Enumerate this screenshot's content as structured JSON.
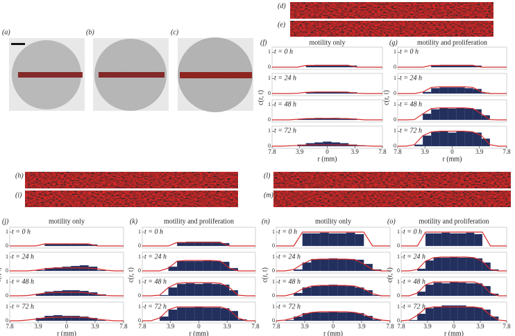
{
  "figure": {
    "image_labels": [
      "(a)",
      "(b)",
      "(c)",
      "(d)",
      "(e)",
      "(h)",
      "(i)",
      "(l)",
      "(m)"
    ]
  },
  "panels": [
    {
      "label": "(f)",
      "title": "motility only",
      "ylabel": "c(r, t)",
      "xlabel": "r (mm)",
      "xlim": [
        -7.8,
        7.8
      ],
      "ylim": [
        0,
        1.2
      ],
      "yticks": [
        0,
        1
      ],
      "xticks": [
        {
          "value": -7.8,
          "label": "7.8"
        },
        {
          "value": -3.9,
          "label": "3.9"
        },
        0,
        3.9,
        7.8
      ],
      "bins": [
        -7.8,
        -6.6,
        -5.4,
        -4.2,
        -3.0,
        -1.8,
        -0.6,
        0.6,
        1.8,
        3.0,
        4.2,
        5.4,
        6.6,
        7.8
      ],
      "rows": [
        {
          "time": "t = 0 h",
          "counts": [
            0,
            0,
            0,
            0,
            0.1,
            0.15,
            0.15,
            0.15,
            0.15,
            0.1,
            0,
            0,
            0
          ],
          "model": [
            0,
            0,
            0,
            0,
            0.12,
            0.12,
            0.12,
            0.12,
            0.12,
            0.12,
            0,
            0,
            0,
            0
          ]
        },
        {
          "time": "t = 24 h",
          "counts": [
            0,
            0,
            0,
            0,
            0.08,
            0.12,
            0.12,
            0.12,
            0.12,
            0.08,
            0,
            0,
            0
          ],
          "model": [
            0,
            0,
            0,
            0.02,
            0.08,
            0.1,
            0.1,
            0.1,
            0.1,
            0.08,
            0.02,
            0,
            0,
            0
          ]
        },
        {
          "time": "t = 48 h",
          "counts": [
            0,
            0,
            0,
            0.05,
            0.1,
            0.12,
            0.1,
            0.12,
            0.1,
            0.08,
            0,
            0,
            0
          ],
          "model": [
            0,
            0,
            0,
            0.04,
            0.08,
            0.09,
            0.1,
            0.1,
            0.09,
            0.08,
            0.04,
            0,
            0,
            0
          ]
        },
        {
          "time": "t = 72 h",
          "counts": [
            0,
            0,
            0,
            0.1,
            0.2,
            0.25,
            0.3,
            0.25,
            0.2,
            0.1,
            0.05,
            0,
            0
          ],
          "model": [
            0,
            0,
            0.02,
            0.05,
            0.08,
            0.09,
            0.09,
            0.09,
            0.09,
            0.08,
            0.05,
            0.02,
            0,
            0
          ]
        }
      ]
    },
    {
      "label": "(g)",
      "title": "motility and proliferation",
      "ylabel": "c(r, t)",
      "xlabel": "r (mm)",
      "xlim": [
        -7.8,
        7.8
      ],
      "ylim": [
        0,
        1.2
      ],
      "yticks": [
        0,
        1
      ],
      "xticks": [
        {
          "value": -7.8,
          "label": "7.8"
        },
        {
          "value": -3.9,
          "label": "3.9"
        },
        0,
        3.9,
        7.8
      ],
      "bins": [
        -7.8,
        -6.6,
        -5.4,
        -4.2,
        -3.0,
        -1.8,
        -0.6,
        0.6,
        1.8,
        3.0,
        4.2,
        5.4,
        6.6,
        7.8
      ],
      "rows": [
        {
          "time": "t = 0 h",
          "counts": [
            0,
            0,
            0,
            0,
            0.1,
            0.15,
            0.15,
            0.15,
            0.15,
            0.1,
            0,
            0,
            0
          ],
          "model": [
            0,
            0,
            0,
            0,
            0.12,
            0.12,
            0.12,
            0.12,
            0.12,
            0.12,
            0,
            0,
            0,
            0
          ]
        },
        {
          "time": "t = 24 h",
          "counts": [
            0,
            0,
            0,
            0.1,
            0.35,
            0.4,
            0.4,
            0.4,
            0.35,
            0.3,
            0.05,
            0,
            0
          ],
          "model": [
            0,
            0,
            0,
            0.1,
            0.4,
            0.45,
            0.45,
            0.45,
            0.45,
            0.4,
            0.1,
            0,
            0,
            0
          ]
        },
        {
          "time": "t = 48 h",
          "counts": [
            0,
            0,
            0,
            0.4,
            0.7,
            0.8,
            0.75,
            0.8,
            0.75,
            0.7,
            0.3,
            0,
            0
          ],
          "model": [
            0,
            0,
            0.02,
            0.4,
            0.75,
            0.8,
            0.8,
            0.8,
            0.8,
            0.75,
            0.4,
            0.02,
            0,
            0
          ]
        },
        {
          "time": "t = 72 h",
          "counts": [
            0,
            0,
            0.1,
            0.7,
            0.95,
            1,
            0.9,
            1,
            0.95,
            0.9,
            0.5,
            0,
            0
          ],
          "model": [
            0,
            0,
            0.1,
            0.7,
            0.95,
            1,
            1,
            1,
            1,
            0.95,
            0.7,
            0.1,
            0,
            0
          ]
        }
      ]
    },
    {
      "label": "(j)",
      "title": "motility only",
      "ylabel": "c(r, t)",
      "xlabel": "r (mm)",
      "xlim": [
        -7.8,
        7.8
      ],
      "ylim": [
        0,
        1.2
      ],
      "yticks": [
        0,
        1
      ],
      "xticks": [
        {
          "value": -7.8,
          "label": "7.8"
        },
        {
          "value": -3.9,
          "label": "3.9"
        },
        0,
        3.9,
        7.8
      ],
      "bins": [
        -7.8,
        -6.6,
        -5.4,
        -4.2,
        -3.0,
        -1.8,
        -0.6,
        0.6,
        1.8,
        3.0,
        4.2,
        5.4,
        6.6,
        7.8
      ],
      "rows": [
        {
          "time": "t = 0 h",
          "counts": [
            0,
            0,
            0,
            0,
            0.15,
            0.15,
            0.15,
            0.15,
            0.15,
            0.1,
            0,
            0,
            0
          ],
          "model": [
            0,
            0,
            0,
            0,
            0.15,
            0.15,
            0.15,
            0.15,
            0.15,
            0.15,
            0,
            0,
            0,
            0
          ]
        },
        {
          "time": "t = 24 h",
          "counts": [
            0,
            0,
            0,
            0.05,
            0.2,
            0.25,
            0.3,
            0.35,
            0.4,
            0.3,
            0.05,
            0,
            0
          ],
          "model": [
            0,
            0,
            0,
            0.05,
            0.15,
            0.2,
            0.22,
            0.22,
            0.22,
            0.2,
            0.15,
            0.05,
            0,
            0
          ]
        },
        {
          "time": "t = 48 h",
          "counts": [
            0,
            0,
            0,
            0.15,
            0.3,
            0.35,
            0.4,
            0.4,
            0.35,
            0.25,
            0.1,
            0,
            0
          ],
          "model": [
            0,
            0,
            0.02,
            0.1,
            0.2,
            0.25,
            0.25,
            0.25,
            0.25,
            0.2,
            0.1,
            0.02,
            0,
            0
          ]
        },
        {
          "time": "t = 72 h",
          "counts": [
            0,
            0,
            0,
            0.2,
            0.35,
            0.4,
            0.35,
            0.35,
            0.3,
            0.2,
            0.05,
            0,
            0
          ],
          "model": [
            0,
            0,
            0.05,
            0.12,
            0.22,
            0.25,
            0.27,
            0.27,
            0.25,
            0.22,
            0.12,
            0.05,
            0,
            0
          ]
        }
      ]
    },
    {
      "label": "(k)",
      "title": "motility and proliferation",
      "ylabel": "c(r, t)",
      "xlabel": "r (mm)",
      "xlim": [
        -7.8,
        7.8
      ],
      "ylim": [
        0,
        1.2
      ],
      "yticks": [
        0,
        1
      ],
      "xticks": [
        {
          "value": -7.8,
          "label": "7.8"
        },
        {
          "value": -3.9,
          "label": "3.9"
        },
        0,
        3.9,
        7.8
      ],
      "bins": [
        -7.8,
        -6.6,
        -5.4,
        -4.2,
        -3.0,
        -1.8,
        -0.6,
        0.6,
        1.8,
        3.0,
        4.2,
        5.4,
        6.6,
        7.8
      ],
      "rows": [
        {
          "time": "t = 0 h",
          "counts": [
            0,
            0,
            0,
            0,
            0.25,
            0.3,
            0.3,
            0.3,
            0.3,
            0.2,
            0,
            0,
            0
          ],
          "model": [
            0,
            0,
            0,
            0,
            0.25,
            0.25,
            0.25,
            0.25,
            0.25,
            0.25,
            0,
            0,
            0,
            0
          ]
        },
        {
          "time": "t = 24 h",
          "counts": [
            0,
            0,
            0,
            0.3,
            0.7,
            0.7,
            0.7,
            0.75,
            0.7,
            0.65,
            0.2,
            0,
            0
          ],
          "model": [
            0,
            0,
            0,
            0.2,
            0.7,
            0.75,
            0.75,
            0.75,
            0.75,
            0.7,
            0.2,
            0,
            0,
            0
          ]
        },
        {
          "time": "t = 48 h",
          "counts": [
            0,
            0,
            0.05,
            0.6,
            0.85,
            0.9,
            0.85,
            0.9,
            0.85,
            0.8,
            0.4,
            0,
            0
          ],
          "model": [
            0,
            0,
            0.05,
            0.6,
            0.9,
            0.95,
            0.95,
            0.95,
            0.95,
            0.9,
            0.6,
            0.05,
            0,
            0
          ]
        },
        {
          "time": "t = 72 h",
          "counts": [
            0,
            0,
            0.3,
            0.8,
            0.95,
            0.95,
            1,
            0.95,
            0.95,
            0.9,
            0.7,
            0.1,
            0
          ],
          "model": [
            0,
            0,
            0.2,
            0.8,
            1,
            1,
            1,
            1,
            1,
            1,
            0.8,
            0.2,
            0,
            0
          ]
        }
      ]
    },
    {
      "label": "(n)",
      "title": "motility only",
      "ylabel": "c(r, t)",
      "xlabel": "r (mm)",
      "xlim": [
        -7.8,
        7.8
      ],
      "ylim": [
        0,
        1.2
      ],
      "yticks": [
        0,
        1
      ],
      "xticks": [
        {
          "value": -7.8,
          "label": "7.8"
        },
        {
          "value": -3.9,
          "label": "3.9"
        },
        0,
        3.9,
        7.8
      ],
      "bins": [
        -7.8,
        -6.6,
        -5.4,
        -4.2,
        -3.0,
        -1.8,
        -0.6,
        0.6,
        1.8,
        3.0,
        4.2,
        5.4,
        6.6,
        7.8
      ],
      "rows": [
        {
          "time": "t = 0 h",
          "counts": [
            0,
            0,
            0,
            0.9,
            0.9,
            0.95,
            0.9,
            0.9,
            0.95,
            0.85,
            0,
            0,
            0
          ],
          "model": [
            0,
            0,
            0,
            1,
            1,
            1,
            1,
            1,
            1,
            1,
            1,
            0,
            0,
            0
          ]
        },
        {
          "time": "t = 24 h",
          "counts": [
            0,
            0,
            0.1,
            0.6,
            0.85,
            0.85,
            0.9,
            0.85,
            0.85,
            0.8,
            0.5,
            0.1,
            0
          ],
          "model": [
            0,
            0,
            0.1,
            0.5,
            0.8,
            0.85,
            0.85,
            0.85,
            0.85,
            0.8,
            0.5,
            0.1,
            0,
            0
          ]
        },
        {
          "time": "t = 48 h",
          "counts": [
            0,
            0,
            0.2,
            0.6,
            0.7,
            0.75,
            0.8,
            0.75,
            0.7,
            0.6,
            0.4,
            0.05,
            0
          ],
          "model": [
            0,
            0,
            0.15,
            0.5,
            0.7,
            0.75,
            0.75,
            0.75,
            0.75,
            0.7,
            0.5,
            0.15,
            0,
            0
          ]
        },
        {
          "time": "t = 72 h",
          "counts": [
            0,
            0.05,
            0.3,
            0.55,
            0.6,
            0.6,
            0.65,
            0.6,
            0.6,
            0.55,
            0.35,
            0.1,
            0
          ],
          "model": [
            0,
            0.05,
            0.2,
            0.45,
            0.6,
            0.65,
            0.65,
            0.65,
            0.65,
            0.6,
            0.45,
            0.2,
            0.05,
            0
          ]
        }
      ]
    },
    {
      "label": "(o)",
      "title": "motility and proliferation",
      "ylabel": "c(r, t)",
      "xlabel": "r (mm)",
      "xlim": [
        -7.8,
        7.8
      ],
      "ylim": [
        0,
        1.2
      ],
      "yticks": [
        0,
        1
      ],
      "xticks": [
        {
          "value": -7.8,
          "label": "7.8"
        },
        {
          "value": -3.9,
          "label": "3.9"
        },
        0,
        3.9,
        7.8
      ],
      "bins": [
        -7.8,
        -6.6,
        -5.4,
        -4.2,
        -3.0,
        -1.8,
        -0.6,
        0.6,
        1.8,
        3.0,
        4.2,
        5.4,
        6.6,
        7.8
      ],
      "rows": [
        {
          "time": "t = 0 h",
          "counts": [
            0,
            0,
            0,
            0.9,
            0.9,
            0.95,
            0.9,
            0.9,
            0.95,
            0.85,
            0,
            0,
            0
          ],
          "model": [
            0,
            0,
            0,
            1,
            1,
            1,
            1,
            1,
            1,
            1,
            1,
            0,
            0,
            0
          ]
        },
        {
          "time": "t = 24 h",
          "counts": [
            0,
            0,
            0.15,
            0.75,
            0.95,
            0.95,
            1,
            0.95,
            0.95,
            0.9,
            0.6,
            0.1,
            0
          ],
          "model": [
            0,
            0,
            0.1,
            0.7,
            0.95,
            1,
            1,
            1,
            1,
            0.95,
            0.7,
            0.1,
            0,
            0
          ]
        },
        {
          "time": "t = 48 h",
          "counts": [
            0,
            0,
            0.3,
            0.8,
            0.95,
            0.9,
            1,
            0.95,
            0.9,
            0.9,
            0.7,
            0.15,
            0
          ],
          "model": [
            0,
            0,
            0.2,
            0.8,
            1,
            1,
            1,
            1,
            1,
            1,
            0.8,
            0.2,
            0,
            0
          ]
        },
        {
          "time": "t = 72 h",
          "counts": [
            0,
            0.05,
            0.5,
            0.9,
            1,
            1.1,
            1.1,
            1.1,
            1,
            0.95,
            0.8,
            0.3,
            0
          ],
          "model": [
            0,
            0.05,
            0.4,
            0.9,
            1,
            1,
            1,
            1,
            1,
            1,
            0.9,
            0.4,
            0.05,
            0
          ]
        }
      ]
    }
  ]
}
